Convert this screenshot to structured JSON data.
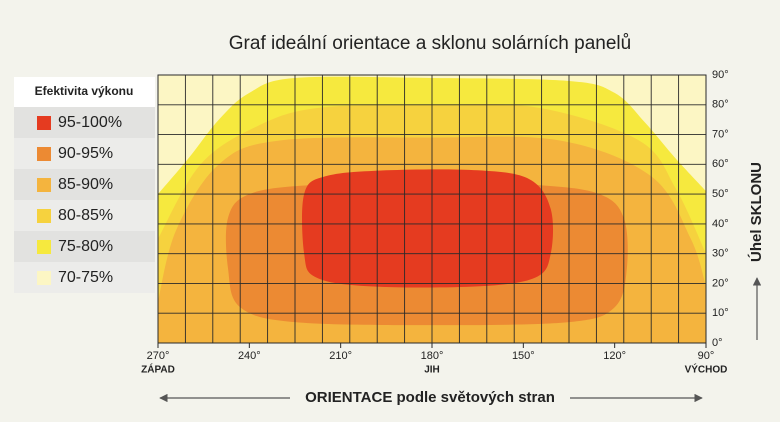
{
  "chart_data": {
    "type": "contour",
    "title": "Graf ideální orientace a sklonu solárních panelů",
    "xlabel": "ORIENTACE podle světových stran",
    "ylabel": "Úhel SKLONU",
    "legend_title": "Efektivita výkonu",
    "xlim": [
      270,
      90
    ],
    "ylim": [
      0,
      90
    ],
    "xticks": [
      {
        "value": 270,
        "label": "270°"
      },
      {
        "value": 240,
        "label": "240°"
      },
      {
        "value": 210,
        "label": "210°"
      },
      {
        "value": 180,
        "label": "180°"
      },
      {
        "value": 150,
        "label": "150°"
      },
      {
        "value": 120,
        "label": "120°"
      },
      {
        "value": 90,
        "label": "90°"
      }
    ],
    "yticks": [
      {
        "value": 0,
        "label": "0°"
      },
      {
        "value": 10,
        "label": "10°"
      },
      {
        "value": 20,
        "label": "20°"
      },
      {
        "value": 30,
        "label": "30°"
      },
      {
        "value": 40,
        "label": "40°"
      },
      {
        "value": 50,
        "label": "50°"
      },
      {
        "value": 60,
        "label": "60°"
      },
      {
        "value": 70,
        "label": "70°"
      },
      {
        "value": 80,
        "label": "80°"
      },
      {
        "value": 90,
        "label": "90°"
      }
    ],
    "x_annotations": [
      {
        "value": 270,
        "label": "ZÁPAD"
      },
      {
        "value": 180,
        "label": "JIH"
      },
      {
        "value": 90,
        "label": "VÝCHOD"
      }
    ],
    "grid": true,
    "series": [
      {
        "name": "95-100%",
        "color": "#e53b20",
        "closed": true,
        "x": [
          222,
          215,
          195,
          165,
          148,
          141,
          141,
          146,
          165,
          200,
          218,
          222
        ],
        "values": [
          50,
          56,
          58,
          58,
          55,
          45,
          30,
          22,
          19,
          19,
          22,
          30
        ]
      },
      {
        "name": "90-95%",
        "color": "#ec8a33",
        "closed": true,
        "x": [
          247,
          240,
          220,
          180,
          145,
          125,
          117,
          116,
          120,
          135,
          180,
          225,
          243,
          247
        ],
        "values": [
          42,
          50,
          53,
          54,
          53,
          50,
          42,
          25,
          12,
          7,
          6,
          7,
          12,
          25
        ]
      },
      {
        "name": "85-90%",
        "color": "#f4b43e",
        "closed": false,
        "x": [
          270,
          264,
          250,
          230,
          180,
          138,
          108,
          95,
          90
        ],
        "values": [
          14,
          38,
          60,
          68,
          69,
          68,
          56,
          35,
          19
        ]
      },
      {
        "name": "80-85%",
        "color": "#f6d23e",
        "closed": false,
        "x": [
          270,
          256,
          237,
          217,
          180,
          145,
          112,
          100,
          90
        ],
        "values": [
          35,
          60,
          73,
          79,
          80,
          79,
          68,
          52,
          30
        ]
      },
      {
        "name": "75-80%",
        "color": "#f6e93e",
        "closed": false,
        "x": [
          270,
          260,
          250,
          240,
          225,
          180,
          135,
          120,
          110,
          100,
          90
        ],
        "values": [
          50,
          62,
          75,
          84,
          89,
          89,
          88,
          84,
          74,
          62,
          51
        ]
      },
      {
        "name": "70-75%",
        "color": "#fcf6c4",
        "closed": false,
        "x": [
          270,
          90
        ],
        "values": [
          90,
          90
        ]
      }
    ]
  }
}
